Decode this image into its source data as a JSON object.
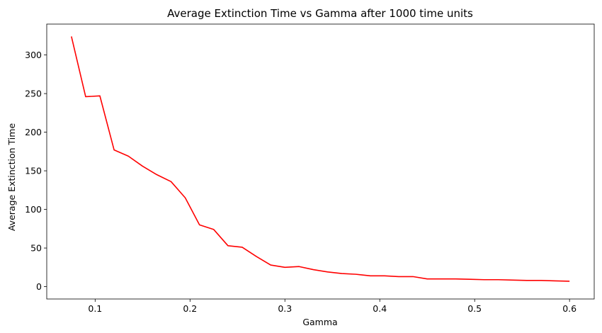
{
  "chart_data": {
    "type": "line",
    "title": "Average Extinction Time vs Gamma after 1000 time units",
    "xlabel": "Gamma",
    "ylabel": "Average Extinction Time",
    "xlim": [
      0.049,
      0.626
    ],
    "ylim": [
      -16,
      340
    ],
    "xticks": [
      0.1,
      0.2,
      0.3,
      0.4,
      0.5,
      0.6
    ],
    "xtick_labels": [
      "0.1",
      "0.2",
      "0.3",
      "0.4",
      "0.5",
      "0.6"
    ],
    "yticks": [
      0,
      50,
      100,
      150,
      200,
      250,
      300
    ],
    "ytick_labels": [
      "0",
      "50",
      "100",
      "150",
      "200",
      "250",
      "300"
    ],
    "grid": false,
    "series": [
      {
        "color": "#ff0000",
        "x": [
          0.075,
          0.09,
          0.105,
          0.12,
          0.135,
          0.15,
          0.165,
          0.18,
          0.195,
          0.21,
          0.225,
          0.24,
          0.255,
          0.27,
          0.285,
          0.3,
          0.315,
          0.33,
          0.345,
          0.36,
          0.375,
          0.39,
          0.405,
          0.42,
          0.435,
          0.45,
          0.465,
          0.48,
          0.495,
          0.51,
          0.525,
          0.54,
          0.555,
          0.57,
          0.585,
          0.6
        ],
        "y": [
          324,
          246,
          247,
          177,
          169,
          156,
          145,
          136,
          115,
          80,
          74,
          53,
          51,
          39,
          28,
          25,
          26,
          22,
          19,
          17,
          16,
          14,
          14,
          13,
          13,
          10,
          10,
          10,
          9.5,
          9,
          9,
          8.5,
          8,
          8,
          7.5,
          7
        ]
      }
    ]
  }
}
